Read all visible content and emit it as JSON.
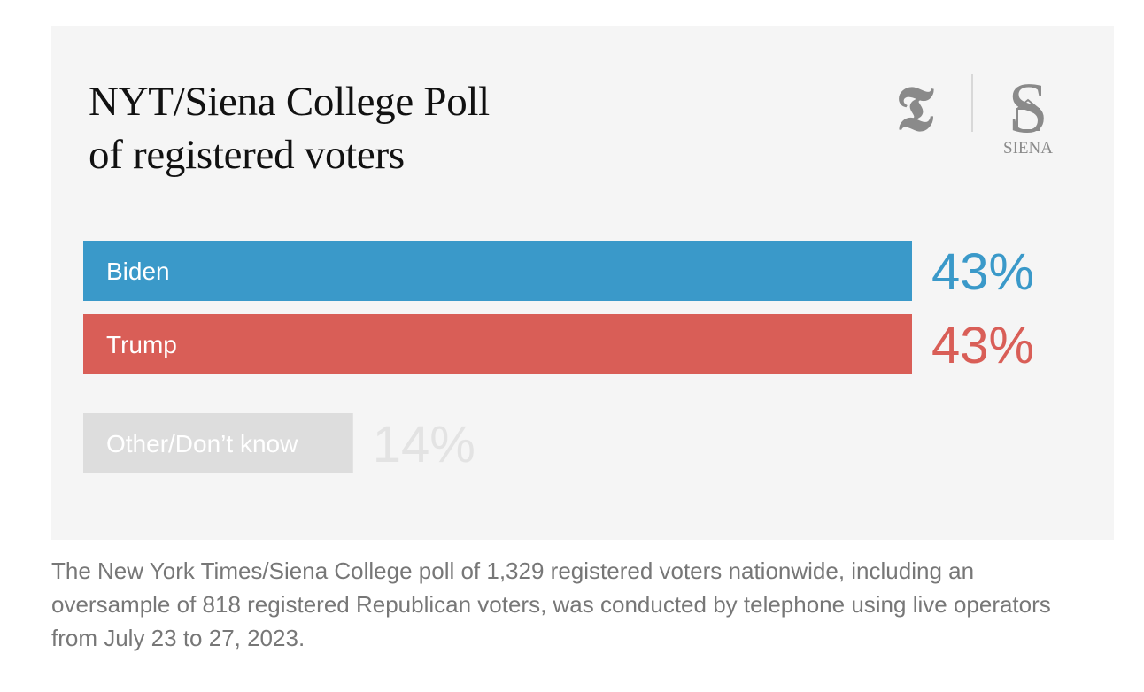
{
  "title_lines": [
    "NYT/Siena College Poll",
    "of registered voters"
  ],
  "logos": {
    "nyt_glyph": "𝕿",
    "siena_glyph": "S",
    "siena_text": "SIENA"
  },
  "chart_data": {
    "type": "bar",
    "orientation": "horizontal",
    "title": "NYT/Siena College Poll of registered voters",
    "categories": [
      "Biden",
      "Trump",
      "Other/Don’t know"
    ],
    "values": [
      43,
      43,
      14
    ],
    "value_labels": [
      "43%",
      "43%",
      "14%"
    ],
    "colors": [
      "#3a99c9",
      "#d95e57",
      "#dddddd"
    ],
    "value_colors": [
      "#3a99c9",
      "#d95e57",
      "#e3e3e3"
    ],
    "xlim": [
      0,
      43
    ],
    "grid": false,
    "legend": "none"
  },
  "note": "The New York Times/Siena College poll of 1,329 registered voters nationwide, including an oversample of 818 registered Republican voters, was conducted by telephone using live operators from July 23 to 27, 2023."
}
